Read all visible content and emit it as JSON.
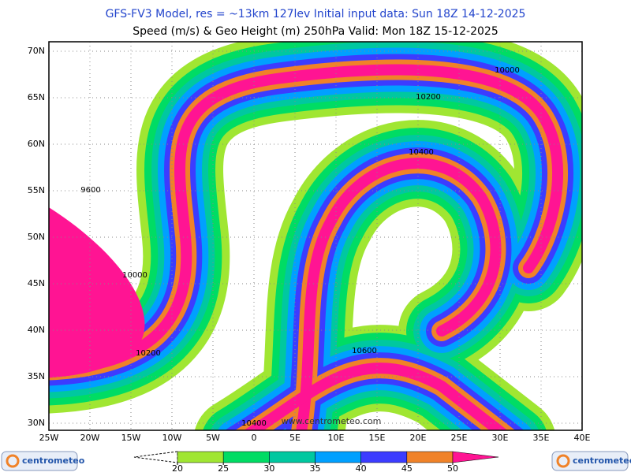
{
  "header": {
    "title_line1": "GFS-FV3 Model, res = ~13km 127lev    Initial input data: Sun 18Z 14-12-2025",
    "title_line2": "Speed (m/s) & Geo Height (m) 250hPa  Valid: Mon 18Z 15-12-2025"
  },
  "map": {
    "lon_labels": [
      "25W",
      "20W",
      "15W",
      "10W",
      "5W",
      "0",
      "5E",
      "10E",
      "15E",
      "20E",
      "25E",
      "30E",
      "35E",
      "40E"
    ],
    "lat_labels": [
      "70N",
      "65N",
      "60N",
      "55N",
      "50N",
      "45N",
      "40N",
      "35N",
      "30N"
    ],
    "contour_labels": [
      "10000",
      "10200",
      "10400",
      "9600",
      "10000",
      "10200",
      "10600",
      "10400"
    ],
    "watermark": "www.centrometeo.com"
  },
  "colorbar": {
    "ticks": [
      20,
      25,
      30,
      35,
      40,
      45,
      50
    ],
    "colors": [
      "#a0e632",
      "#00dc64",
      "#00c8a0",
      "#00a0ff",
      "#3c3cff",
      "#f08228",
      "#ff1493"
    ]
  },
  "logos": {
    "left": "centrometeo",
    "right": "centrometeo"
  }
}
